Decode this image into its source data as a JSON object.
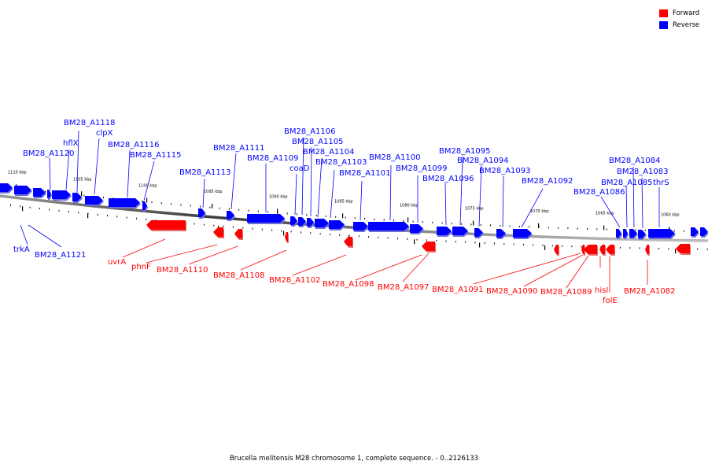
{
  "caption": "Brucella melitensis M28 chromosome 1, complete sequence. - 0..2126133",
  "legend": [
    {
      "label": "Forward",
      "color": "#ff0000"
    },
    {
      "label": "Reverse",
      "color": "#0000ff"
    }
  ],
  "colors": {
    "forward": "#ff0000",
    "reverse": "#0000ff",
    "backbone": "#555555"
  },
  "scale_ticks": [
    "1110 kbp",
    "1105 kbp",
    "1100 kbp",
    "1095 kbp",
    "1090 kbp",
    "1085 kbp",
    "1080 kbp",
    "1075 kbp",
    "1070 kbp",
    "1065 kbp",
    "1060 kbp"
  ],
  "reverse_gene_labels": [
    "trkA",
    "BM28_A1121",
    "BM28_A1120",
    "hflX",
    "BM28_A1118",
    "clpX",
    "BM28_A1116",
    "BM28_A1115",
    "BM28_A1113",
    "BM28_A1111",
    "BM28_A1109",
    "coaD",
    "BM28_A1106",
    "BM28_A1105",
    "BM28_A1104",
    "BM28_A1103",
    "BM28_A1101",
    "BM28_A1100",
    "BM28_A1099",
    "BM28_A1096",
    "BM28_A1095",
    "BM28_A1094",
    "BM28_A1093",
    "BM28_A1092",
    "BM28_A1086",
    "BM28_A1085",
    "BM28_A1084",
    "BM28_A1083",
    "thrS"
  ],
  "forward_gene_labels": [
    "uvrA",
    "phnF",
    "BM28_A1110",
    "BM28_A1108",
    "BM28_A1102",
    "BM28_A1098",
    "BM28_A1097",
    "BM28_A1091",
    "BM28_A1090",
    "BM28_A1089",
    "hisI",
    "folE",
    "BM28_A1082"
  ]
}
